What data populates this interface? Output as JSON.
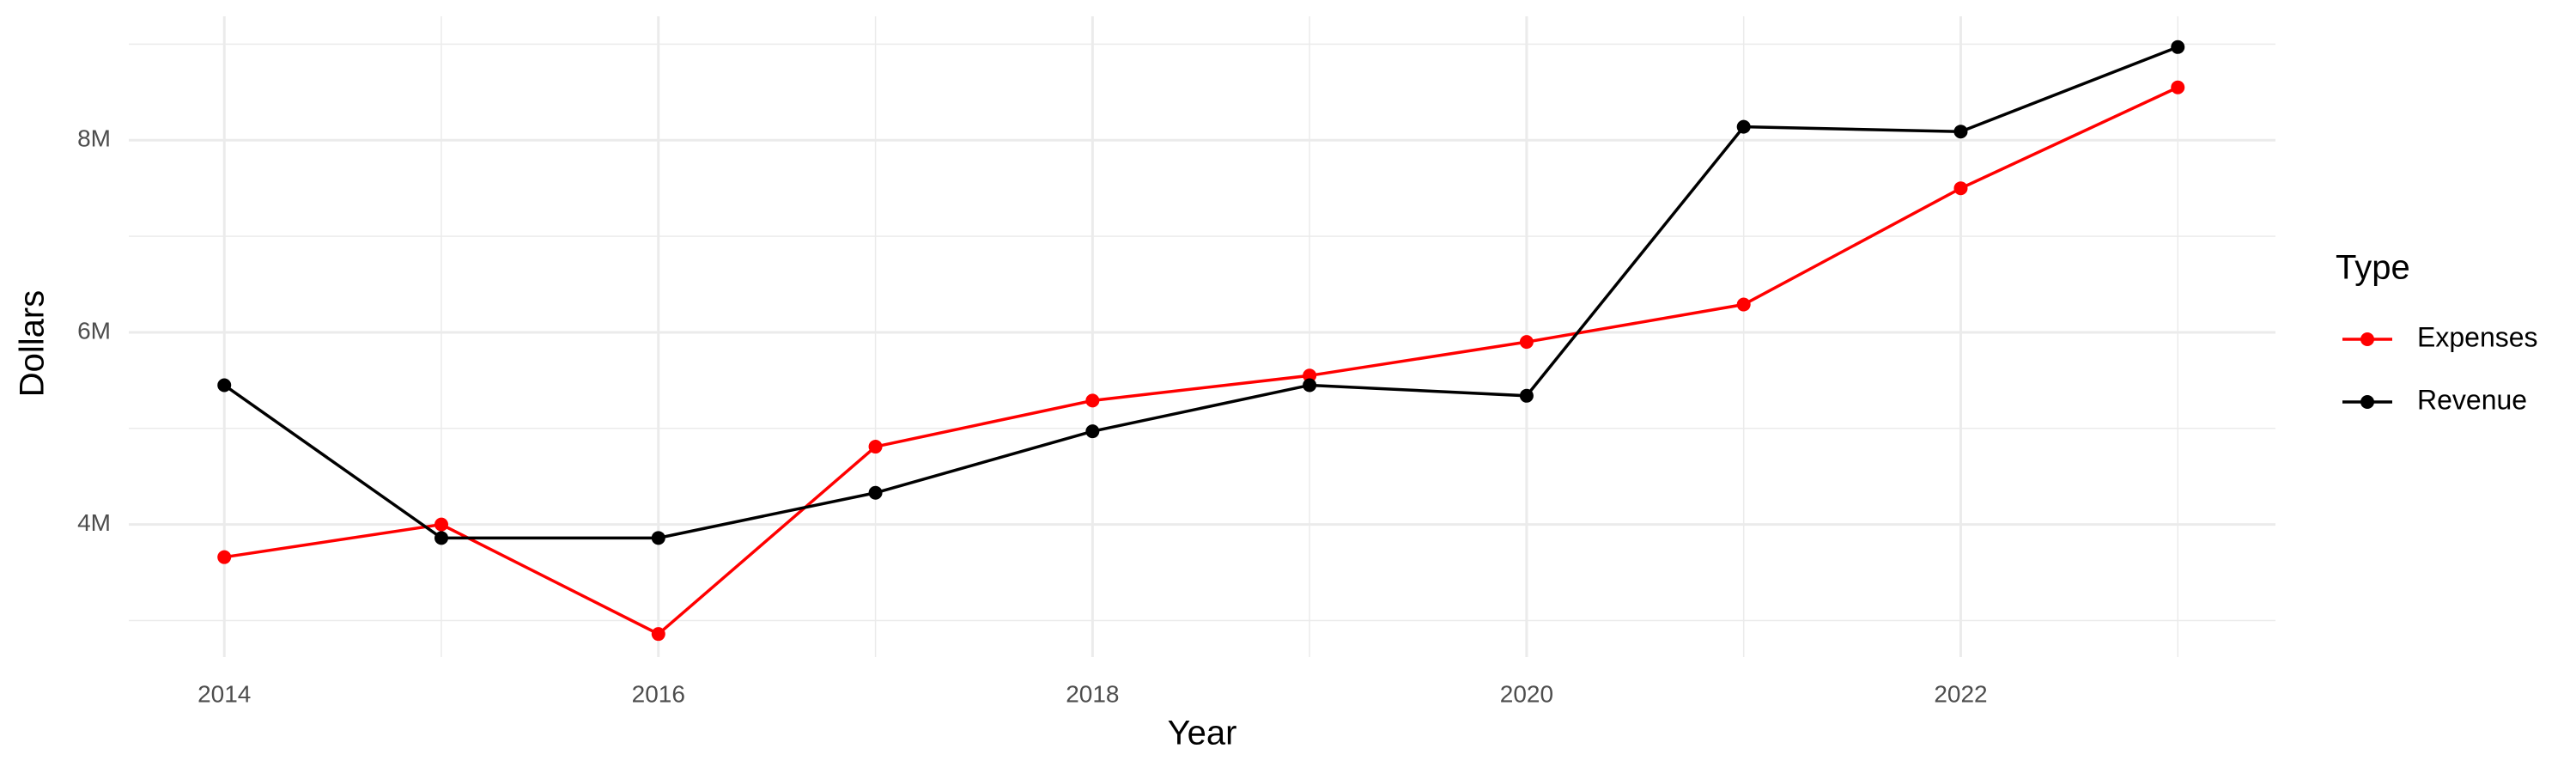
{
  "chart_data": {
    "type": "line",
    "x_label": "Year",
    "y_label": "Dollars",
    "x": [
      2014,
      2015,
      2016,
      2017,
      2018,
      2019,
      2020,
      2021,
      2022,
      2023
    ],
    "series": [
      {
        "name": "Expenses",
        "color": "#ff0000",
        "values": [
          3660000,
          4000000,
          2860000,
          4810000,
          5290000,
          5550000,
          5900000,
          6290000,
          7500000,
          8550000
        ]
      },
      {
        "name": "Revenue",
        "color": "#000000",
        "values": [
          5450000,
          3860000,
          3860000,
          4330000,
          4970000,
          5450000,
          5340000,
          8140000,
          8090000,
          8970000
        ]
      }
    ],
    "legend_title": "Type",
    "legend_position": "right",
    "xlim": [
      2013.56,
      2023.45
    ],
    "xticks": [
      2014,
      2016,
      2018,
      2020,
      2022
    ],
    "x_minor_ticks": [
      2015,
      2017,
      2019,
      2021,
      2023
    ],
    "ylim": [
      2620000,
      9290000
    ],
    "yticks": [
      {
        "value": 4000000,
        "label": "4M"
      },
      {
        "value": 6000000,
        "label": "6M"
      },
      {
        "value": 8000000,
        "label": "8M"
      }
    ],
    "y_minor_ticks": [
      3000000,
      5000000,
      7000000,
      9000000
    ],
    "grid": true
  }
}
